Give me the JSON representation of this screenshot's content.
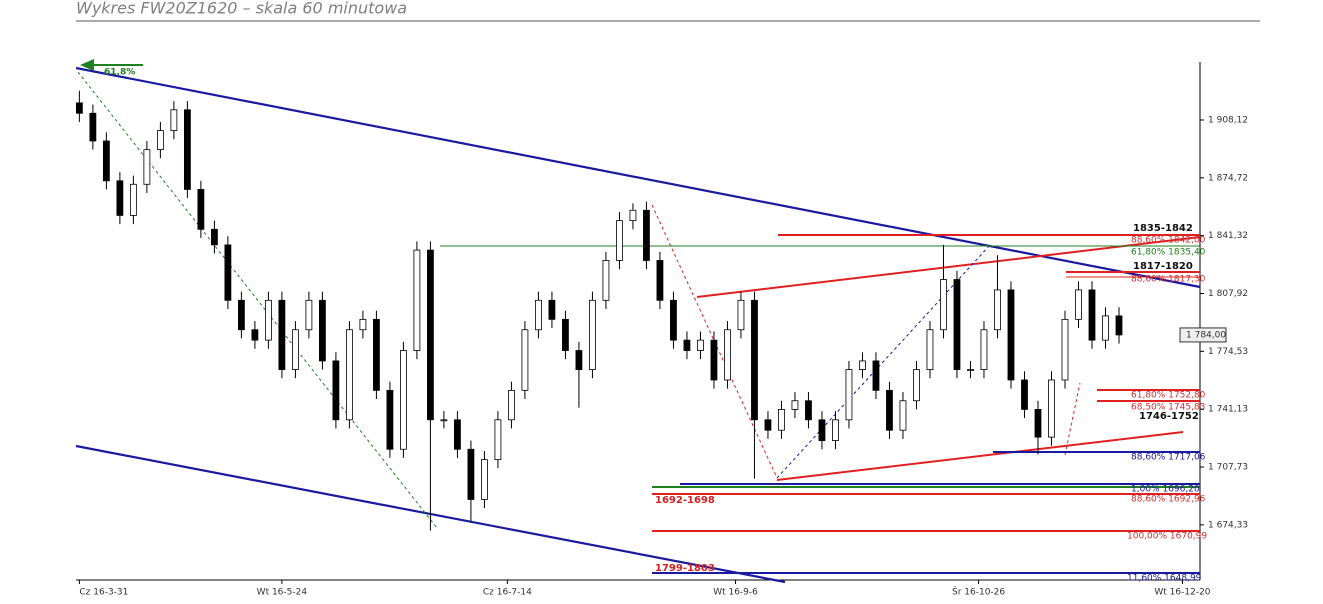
{
  "chart_data": {
    "type": "candlestick",
    "title": "Wykres FW20Z1620 – skala 60 minutowa",
    "up_color": "#ffffff",
    "down_color": "#000000",
    "edge_color": "#000000",
    "open": [
      1918,
      1912,
      1896,
      1873,
      1853,
      1871,
      1891,
      1902,
      1914,
      1868,
      1845,
      1836,
      1804,
      1787,
      1781,
      1804,
      1764,
      1787,
      1804,
      1769,
      1735,
      1787,
      1793,
      1752,
      1718,
      1775,
      1833,
      1735,
      1735,
      1718,
      1689,
      1712,
      1735,
      1752,
      1787,
      1804,
      1793,
      1775,
      1764,
      1804,
      1827,
      1850,
      1856,
      1827,
      1804,
      1781,
      1775,
      1781,
      1758,
      1787,
      1804,
      1735,
      1729,
      1741,
      1746,
      1735,
      1723,
      1735,
      1764,
      1769,
      1752,
      1729,
      1746,
      1764,
      1787,
      1816,
      1764,
      1764,
      1787,
      1810,
      1758,
      1741,
      1725,
      1758,
      1793,
      1810,
      1781,
      1795
    ],
    "high": [
      1925,
      1917,
      1901,
      1878,
      1876,
      1896,
      1907,
      1919,
      1919,
      1873,
      1850,
      1841,
      1809,
      1792,
      1809,
      1809,
      1792,
      1809,
      1809,
      1774,
      1792,
      1798,
      1798,
      1757,
      1780,
      1838,
      1838,
      1740,
      1740,
      1723,
      1717,
      1740,
      1757,
      1792,
      1809,
      1809,
      1798,
      1780,
      1809,
      1832,
      1855,
      1860,
      1861,
      1832,
      1809,
      1786,
      1786,
      1786,
      1792,
      1809,
      1809,
      1740,
      1746,
      1751,
      1751,
      1740,
      1740,
      1769,
      1774,
      1774,
      1757,
      1751,
      1769,
      1792,
      1836,
      1821,
      1769,
      1792,
      1830,
      1815,
      1763,
      1746,
      1763,
      1798,
      1815,
      1815,
      1800,
      1800
    ],
    "low": [
      1907,
      1891,
      1868,
      1848,
      1848,
      1866,
      1886,
      1897,
      1863,
      1840,
      1831,
      1799,
      1782,
      1776,
      1776,
      1759,
      1759,
      1782,
      1764,
      1730,
      1730,
      1782,
      1747,
      1713,
      1713,
      1770,
      1671,
      1730,
      1713,
      1676,
      1684,
      1707,
      1730,
      1747,
      1782,
      1788,
      1770,
      1742,
      1759,
      1799,
      1822,
      1845,
      1822,
      1799,
      1776,
      1770,
      1770,
      1753,
      1753,
      1782,
      1701,
      1724,
      1724,
      1736,
      1730,
      1718,
      1718,
      1730,
      1759,
      1747,
      1724,
      1724,
      1741,
      1759,
      1782,
      1759,
      1759,
      1759,
      1782,
      1753,
      1736,
      1715,
      1720,
      1753,
      1788,
      1776,
      1776,
      1779
    ],
    "close": [
      1912,
      1896,
      1873,
      1853,
      1871,
      1891,
      1902,
      1914,
      1868,
      1845,
      1836,
      1804,
      1787,
      1781,
      1804,
      1764,
      1787,
      1804,
      1769,
      1735,
      1787,
      1793,
      1752,
      1718,
      1775,
      1833,
      1735,
      1735,
      1718,
      1689,
      1712,
      1735,
      1752,
      1787,
      1804,
      1793,
      1775,
      1764,
      1804,
      1827,
      1850,
      1856,
      1827,
      1804,
      1781,
      1775,
      1781,
      1758,
      1787,
      1804,
      1735,
      1729,
      1741,
      1746,
      1735,
      1723,
      1735,
      1764,
      1769,
      1752,
      1729,
      1746,
      1764,
      1787,
      1816,
      1764,
      1764,
      1787,
      1810,
      1758,
      1741,
      1725,
      1758,
      1793,
      1810,
      1781,
      1795,
      1784
    ],
    "ylim": [
      1642.5,
      1941.6
    ],
    "yticks": [
      {
        "value": 1674.33,
        "label": "1 674,33"
      },
      {
        "value": 1707.73,
        "label": "1 707,73"
      },
      {
        "value": 1741.13,
        "label": "1 741,13"
      },
      {
        "value": 1774.53,
        "label": "1 774,53"
      },
      {
        "value": 1807.92,
        "label": "1 807,92"
      },
      {
        "value": 1841.32,
        "label": "1 841,32"
      },
      {
        "value": 1874.72,
        "label": "1 874,72"
      },
      {
        "value": 1908.12,
        "label": "1 908,12"
      }
    ],
    "xlim": [
      -0.25,
      83
    ],
    "xticks": [
      {
        "value": 0,
        "label": "Cz 16-3-31"
      },
      {
        "value": 15,
        "label": "Wt 16-5-24"
      },
      {
        "value": 31.7,
        "label": "Cz 16-7-14"
      },
      {
        "value": 48.6,
        "label": "Wt 16-9-6"
      },
      {
        "value": 66.6,
        "label": "Śr 16-10-26"
      },
      {
        "value": 81.7,
        "label": "Wt 16-12-20"
      }
    ],
    "last_price": {
      "value": 1784,
      "label": "1 784,00"
    },
    "annotations": [
      "61,8%",
      "1835-1842",
      "88,60% 1842,00",
      "61,80% 1835,40",
      "1817-1820",
      "88,60% 1817,30",
      "61,80% 1752,80",
      "68,50% 1745,83",
      "1746-1752",
      "88,60% 1717,06",
      "1692-1698",
      "1,00% 1696,20",
      "88,60% 1692,96",
      "100,00% 1670,99",
      "1799-1803",
      "11,60% 1648,99"
    ]
  }
}
